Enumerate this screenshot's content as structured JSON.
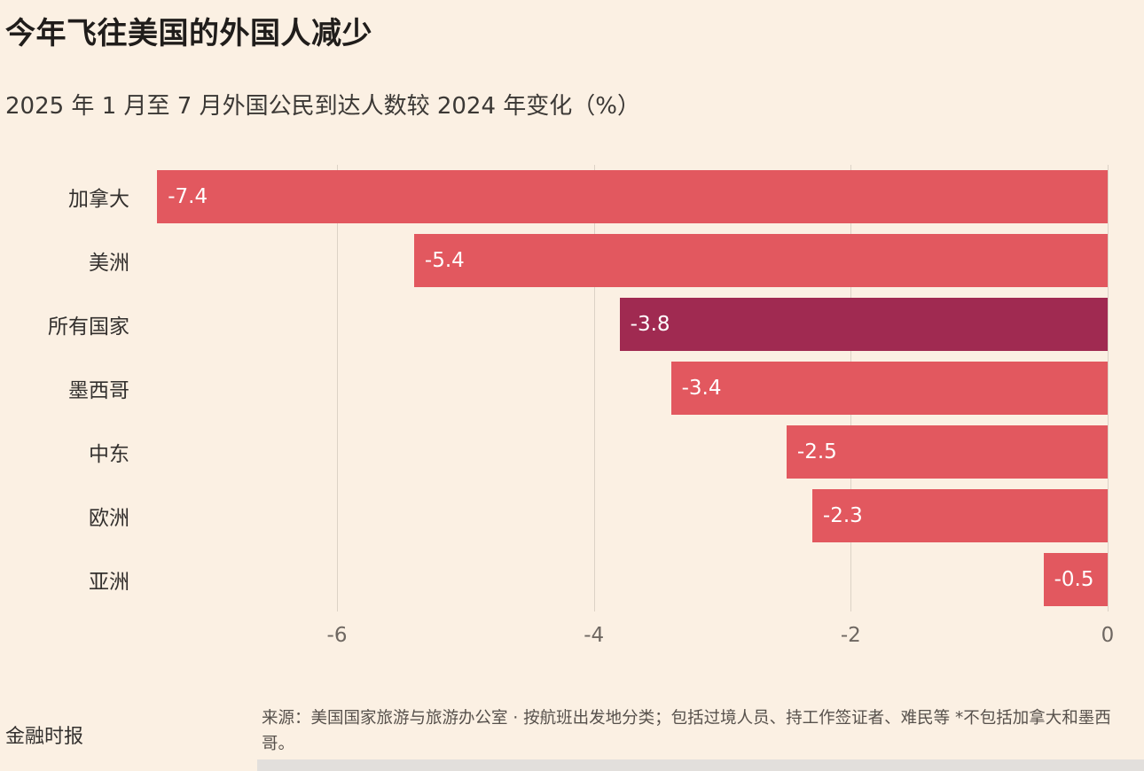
{
  "footer": {
    "brand": "金融时报",
    "source": "来源：美国国家旅游与旅游办公室 · 按航班出发地分类；包括过境人员、持工作签证者、难民等 *不包括加拿大和墨西哥。"
  },
  "colors": {
    "background": "#FBF0E3",
    "bar": "#E2585F",
    "bar_highlight": "#A02A51",
    "grid": "#DCD2C6",
    "value_text": "#FFFFFF",
    "title_text": "#201D1B",
    "axis_text": "#6E6761"
  },
  "chart_data": {
    "type": "bar",
    "orientation": "horizontal",
    "title": "今年飞往美国的外国人减少",
    "subtitle": "2025 年 1 月至 7 月外国公民到达人数较 2024 年变化（%）",
    "categories": [
      "加拿大",
      "美洲",
      "所有国家",
      "墨西哥",
      "中东",
      "欧洲",
      "亚洲"
    ],
    "values": [
      -7.4,
      -5.4,
      -3.8,
      -3.4,
      -2.5,
      -2.3,
      -0.5
    ],
    "value_labels": [
      "-7.4",
      "-5.4",
      "-3.8",
      "-3.4",
      "-2.5",
      "-2.3",
      "-0.5"
    ],
    "highlight_category": "所有国家",
    "xlim": [
      -7.45,
      0
    ],
    "xticks": [
      -6,
      -4,
      -2,
      0
    ],
    "xtick_labels": [
      "-6",
      "-4",
      "-2",
      "0"
    ],
    "xlabel": "",
    "ylabel": "",
    "grid": true,
    "legend": false
  }
}
